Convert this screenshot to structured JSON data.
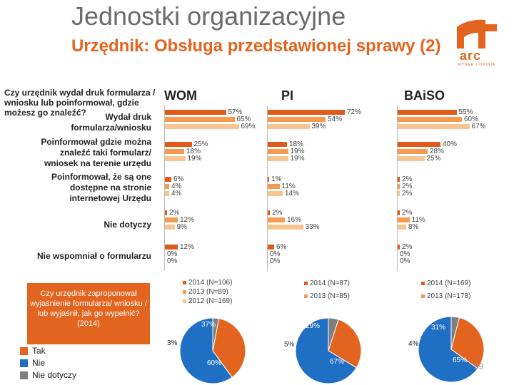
{
  "header": {
    "title": "Jednostki organizacyjne",
    "subtitle": "Urzędnik: Obsługa przedstawionej sprawy (2)"
  },
  "logo": {
    "name": "arc",
    "tagline": "RYNEK I OPINIA"
  },
  "page_number": "59",
  "question": "Czy urzędnik wydał druk formularza / wniosku lub poinformował, gdzie możesz go znaleźć?",
  "chart_data": [
    {
      "type": "bar",
      "orientation": "horizontal",
      "title": "Czy urzędnik wydał druk formularza / wniosku lub poinformował, gdzie możesz go znaleźć?",
      "categories": [
        "Wydał druk formularza/wniosku",
        "Poinformował gdzie można znaleźć taki formularz/ wniosek na terenie urzędu",
        "Poinformował, że są one dostępne na stronie internetowej Urzędu",
        "Nie dotyczy",
        "Nie wspomniał o formularzu"
      ],
      "panels": [
        {
          "name": "WOM",
          "series": [
            {
              "name": "2014 (N=106)",
              "values": [
                57,
                25,
                6,
                2,
                12
              ]
            },
            {
              "name": "2013 (N=89)",
              "values": [
                65,
                18,
                4,
                12,
                0
              ]
            },
            {
              "name": "2012 (N=169)",
              "values": [
                69,
                19,
                4,
                9,
                0
              ]
            }
          ],
          "labels": [
            [
              "57%",
              "65%",
              "69%"
            ],
            [
              "25%",
              "18%",
              "19%"
            ],
            [
              "6%",
              "4%",
              "4%"
            ],
            [
              "2%",
              "12%",
              "9%"
            ],
            [
              "12%",
              "0%",
              "0%"
            ]
          ]
        },
        {
          "name": "PI",
          "series": [
            {
              "name": "2014 (N=87)",
              "values": [
                72,
                18,
                1,
                2,
                6
              ]
            },
            {
              "name": "2013 (N=85)",
              "values": [
                54,
                19,
                11,
                16,
                0
              ]
            },
            {
              "name": "",
              "values": [
                39,
                19,
                14,
                33,
                0
              ]
            }
          ],
          "labels": [
            [
              "72%",
              "54%",
              "39%"
            ],
            [
              "18%",
              "19%",
              "19%"
            ],
            [
              "1%",
              "11%",
              "14%"
            ],
            [
              "2%",
              "16%",
              "33%"
            ],
            [
              "6%",
              "0%",
              "0%"
            ]
          ]
        },
        {
          "name": "BAiSO",
          "series": [
            {
              "name": "2014 (N=169)",
              "values": [
                55,
                40,
                2,
                2,
                2
              ]
            },
            {
              "name": "2013 (N=178)",
              "values": [
                60,
                28,
                2,
                11,
                0
              ]
            },
            {
              "name": "",
              "values": [
                67,
                25,
                2,
                8,
                0
              ]
            }
          ],
          "labels": [
            [
              "55%",
              "60%",
              "67%"
            ],
            [
              "40%",
              "28%",
              "25%"
            ],
            [
              "2%",
              "2%",
              "2%"
            ],
            [
              "2%",
              "11%",
              "8%"
            ],
            [
              "2%",
              "0%",
              "0%"
            ]
          ]
        }
      ],
      "colors": [
        "#e05a1c",
        "#f59a4e",
        "#f7c38f"
      ]
    },
    {
      "type": "pie",
      "title": "Czy urzędnik zaproponował wyjaśnienie formularza/ wniosku / lub wyjaśnił, jak go wypełnić? (2014)",
      "categories": [
        "Tak",
        "Nie",
        "Nie dotyczy"
      ],
      "colors": [
        "#e3641e",
        "#1f6fc5",
        "#7f7f7f"
      ],
      "pies": [
        {
          "name": "WOM",
          "values": [
            37,
            60,
            3
          ],
          "labels": [
            "37%",
            "60%",
            "3%"
          ]
        },
        {
          "name": "PI",
          "values": [
            29,
            67,
            5
          ],
          "labels": [
            "29%",
            "67%",
            "5%"
          ]
        },
        {
          "name": "BAiSO",
          "values": [
            31,
            65,
            4
          ],
          "labels": [
            "31%",
            "65%",
            "4%"
          ]
        }
      ]
    }
  ],
  "legends": {
    "wom": [
      "2014 (N=106)",
      "2013 (N=89)",
      "2012 (N=169)"
    ],
    "pi": [
      "2014 (N=87)",
      "2013 (N=85)"
    ],
    "baiso": [
      "2014 (N=169)",
      "2013 (N=178)"
    ]
  },
  "pie_question": "Czy urzędnik zaproponował wyjaśnienie formularza/ wniosku / lub wyjaśnił, jak go wypełnić? (2014)",
  "pie_legend": [
    "Tak",
    "Nie",
    "Nie dotyczy"
  ]
}
